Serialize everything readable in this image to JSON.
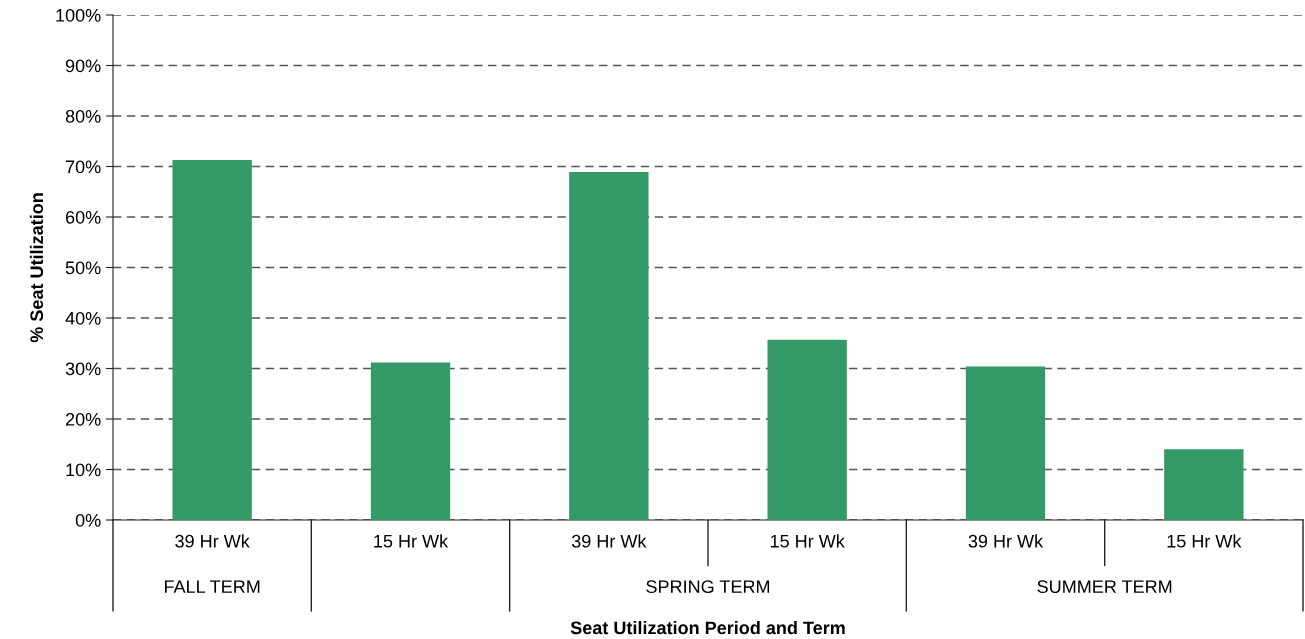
{
  "chart_data": {
    "type": "bar",
    "xlabel": "Seat Utilization Period and Term",
    "ylabel": "% Seat Utilization",
    "categories": [
      "39 Hr Wk",
      "15 Hr Wk",
      "39 Hr Wk",
      "15 Hr Wk",
      "39 Hr Wk",
      "15 Hr Wk"
    ],
    "values": [
      71.3,
      31.2,
      68.9,
      35.7,
      30.4,
      14.0
    ],
    "color": "#339966",
    "ylim": [
      0,
      100
    ],
    "yticks": [
      {
        "value": 0,
        "label": "0%"
      },
      {
        "value": 10,
        "label": "10%"
      },
      {
        "value": 20,
        "label": "20%"
      },
      {
        "value": 30,
        "label": "30%"
      },
      {
        "value": 40,
        "label": "40%"
      },
      {
        "value": 50,
        "label": "50%"
      },
      {
        "value": 60,
        "label": "60%"
      },
      {
        "value": 70,
        "label": "70%"
      },
      {
        "value": 80,
        "label": "80%"
      },
      {
        "value": 90,
        "label": "90%"
      },
      {
        "value": 100,
        "label": "100%"
      }
    ],
    "annotations": [
      "FALL TERM",
      "SPRING TERM",
      "SUMMER TERM"
    ],
    "grid": "y",
    "legend": false
  }
}
